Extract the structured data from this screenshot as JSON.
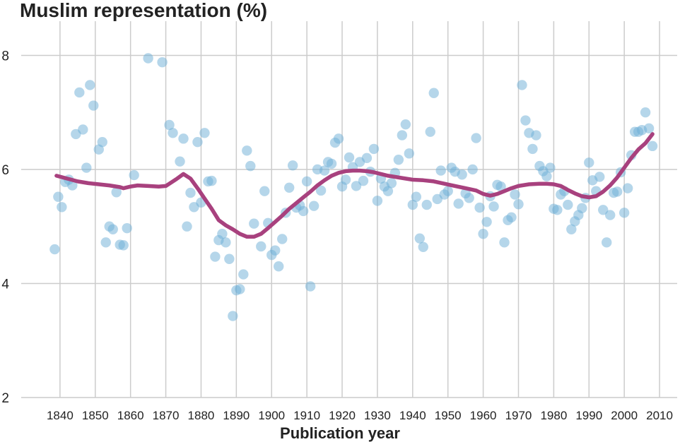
{
  "chart_data": {
    "type": "scatter",
    "title": "Muslim representation (%)",
    "xlabel": "Publication year",
    "ylabel": "",
    "xlim": [
      1829,
      2015
    ],
    "ylim": [
      2,
      8.6
    ],
    "xticks": [
      1840,
      1850,
      1860,
      1870,
      1880,
      1890,
      1900,
      1910,
      1920,
      1930,
      1940,
      1950,
      1960,
      1970,
      1980,
      1990,
      2000,
      2010
    ],
    "yticks": [
      2,
      4,
      6,
      8
    ],
    "grid": true,
    "colors": {
      "points": "#6baed6",
      "trend": "#a8417e",
      "grid": "#cccccc",
      "text": "#222222"
    },
    "series": [
      {
        "kind": "points",
        "x": [
          1838.5,
          1839.5,
          1840.5,
          1841.5,
          1842.5,
          1843.5,
          1844.5,
          1845.5,
          1846.5,
          1847.5,
          1848.5,
          1849.5,
          1851,
          1852,
          1853,
          1854,
          1855,
          1856,
          1857,
          1858,
          1859,
          1861,
          1865,
          1869,
          1871,
          1872,
          1874,
          1875,
          1876,
          1877,
          1878,
          1879,
          1880,
          1881,
          1882,
          1883,
          1884,
          1885,
          1886,
          1887,
          1888,
          1889,
          1890,
          1891,
          1892,
          1893,
          1894,
          1895,
          1897,
          1898,
          1899,
          1900,
          1901,
          1902,
          1903,
          1904,
          1905,
          1906,
          1907,
          1908,
          1909,
          1910,
          1911,
          1912,
          1913,
          1914,
          1915,
          1916,
          1917,
          1918,
          1919,
          1920,
          1921,
          1922,
          1923,
          1924,
          1925,
          1926,
          1927,
          1928,
          1929,
          1930,
          1931,
          1932,
          1933,
          1934,
          1935,
          1936,
          1937,
          1938,
          1939,
          1940,
          1941,
          1942,
          1943,
          1944,
          1945,
          1946,
          1947,
          1948,
          1949,
          1950,
          1951,
          1952,
          1953,
          1954,
          1955,
          1956,
          1957,
          1958,
          1959,
          1960,
          1961,
          1962,
          1963,
          1964,
          1965,
          1966,
          1967,
          1968,
          1969,
          1970,
          1971,
          1972,
          1973,
          1974,
          1975,
          1976,
          1977,
          1978,
          1979,
          1980,
          1981,
          1982,
          1983,
          1984,
          1985,
          1986,
          1987,
          1988,
          1989,
          1990,
          1991,
          1992,
          1993,
          1994,
          1995,
          1996,
          1997,
          1998,
          1999,
          2000,
          2001,
          2002,
          2003,
          2004,
          2005,
          2006,
          2007,
          2008
        ],
        "y": [
          4.6,
          5.52,
          5.34,
          5.78,
          5.82,
          5.72,
          6.62,
          7.35,
          6.7,
          6.03,
          7.48,
          7.12,
          6.35,
          6.48,
          4.72,
          5.0,
          4.95,
          5.6,
          4.68,
          4.67,
          4.97,
          5.9,
          7.95,
          7.88,
          6.78,
          6.64,
          6.14,
          6.54,
          5.0,
          5.59,
          5.34,
          6.48,
          5.42,
          6.64,
          5.79,
          5.8,
          4.47,
          4.76,
          4.87,
          4.72,
          4.43,
          3.43,
          3.88,
          3.9,
          4.16,
          6.33,
          6.06,
          5.05,
          4.65,
          5.62,
          5.06,
          4.5,
          4.58,
          4.3,
          4.78,
          5.24,
          5.68,
          6.07,
          5.33,
          5.37,
          5.27,
          5.79,
          3.95,
          5.36,
          6.0,
          5.63,
          5.98,
          6.13,
          6.1,
          6.47,
          6.54,
          5.7,
          5.82,
          6.21,
          6.04,
          5.71,
          6.13,
          5.8,
          6.2,
          5.96,
          6.36,
          5.45,
          5.84,
          5.7,
          5.62,
          5.76,
          5.94,
          6.17,
          6.6,
          6.79,
          6.28,
          5.38,
          5.52,
          4.79,
          4.64,
          5.38,
          6.66,
          7.34,
          5.48,
          5.98,
          5.56,
          5.62,
          6.03,
          5.96,
          5.4,
          5.91,
          5.58,
          5.5,
          6.0,
          6.55,
          5.33,
          4.87,
          5.08,
          5.53,
          5.35,
          5.73,
          5.7,
          4.72,
          5.11,
          5.16,
          5.56,
          5.39,
          7.48,
          6.86,
          6.64,
          6.36,
          6.6,
          6.06,
          5.97,
          5.88,
          6.03,
          5.31,
          5.29,
          5.56,
          5.62,
          5.38,
          4.95,
          5.09,
          5.2,
          5.32,
          5.5,
          6.12,
          5.81,
          5.62,
          5.87,
          5.29,
          4.72,
          5.2,
          5.59,
          5.61,
          5.95,
          5.24,
          5.67,
          6.25,
          6.66,
          6.66,
          6.69,
          7.0,
          6.72,
          6.41
        ]
      },
      {
        "kind": "trend",
        "x": [
          1839,
          1842,
          1845,
          1848,
          1851,
          1854,
          1857,
          1858,
          1860,
          1862,
          1865,
          1868,
          1870,
          1873,
          1875,
          1876,
          1877,
          1879,
          1881,
          1883,
          1885,
          1887,
          1889,
          1891,
          1893,
          1895,
          1897,
          1899,
          1901,
          1903,
          1905,
          1907,
          1909,
          1911,
          1913,
          1915,
          1917,
          1919,
          1921,
          1923,
          1925,
          1927,
          1929,
          1931,
          1933,
          1935,
          1937,
          1940,
          1943,
          1946,
          1949,
          1952,
          1955,
          1958,
          1960,
          1962,
          1964,
          1966,
          1968,
          1970,
          1973,
          1976,
          1978,
          1980,
          1982,
          1984,
          1986,
          1988,
          1990,
          1992,
          1994,
          1996,
          1998,
          2000,
          2002,
          2004,
          2006,
          2008
        ],
        "y": [
          5.89,
          5.84,
          5.79,
          5.76,
          5.74,
          5.72,
          5.69,
          5.67,
          5.7,
          5.72,
          5.71,
          5.7,
          5.71,
          5.83,
          5.92,
          5.88,
          5.84,
          5.67,
          5.49,
          5.31,
          5.11,
          5.02,
          4.95,
          4.87,
          4.82,
          4.82,
          4.87,
          4.97,
          5.08,
          5.19,
          5.31,
          5.41,
          5.51,
          5.61,
          5.72,
          5.81,
          5.89,
          5.94,
          5.97,
          5.98,
          5.98,
          5.97,
          5.95,
          5.92,
          5.89,
          5.87,
          5.85,
          5.82,
          5.81,
          5.79,
          5.75,
          5.71,
          5.67,
          5.63,
          5.57,
          5.54,
          5.57,
          5.62,
          5.67,
          5.71,
          5.74,
          5.75,
          5.75,
          5.74,
          5.71,
          5.64,
          5.58,
          5.53,
          5.51,
          5.53,
          5.61,
          5.72,
          5.86,
          6.03,
          6.2,
          6.35,
          6.46,
          6.62
        ]
      }
    ]
  }
}
